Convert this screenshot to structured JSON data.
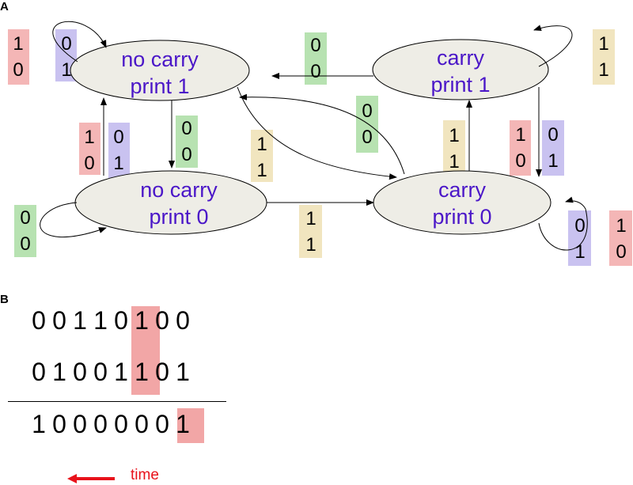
{
  "panels": {
    "a_label": "A",
    "b_label": "B"
  },
  "diagram": {
    "states": [
      {
        "id": "nc1",
        "line1": "no carry",
        "line2": "print 1"
      },
      {
        "id": "nc0",
        "line1": "no carry",
        "line2": "print 0"
      },
      {
        "id": "c1",
        "line1": "carry",
        "line2": "print 1"
      },
      {
        "id": "c0",
        "line1": "carry",
        "line2": "print 0"
      }
    ],
    "labels": [
      {
        "top": "1",
        "bottom": "0"
      },
      {
        "top": "0",
        "bottom": "1"
      },
      {
        "top": "0",
        "bottom": "0"
      },
      {
        "top": "1",
        "bottom": "1"
      },
      {
        "top": "0",
        "bottom": "0"
      },
      {
        "top": "1",
        "bottom": "0"
      },
      {
        "top": "0",
        "bottom": "1"
      },
      {
        "top": "0",
        "bottom": "0"
      },
      {
        "top": "1",
        "bottom": "1"
      },
      {
        "top": "1",
        "bottom": "1"
      },
      {
        "top": "1",
        "bottom": "0"
      },
      {
        "top": "0",
        "bottom": "1"
      },
      {
        "top": "0",
        "bottom": "0"
      },
      {
        "top": "1",
        "bottom": "1"
      },
      {
        "top": "0",
        "bottom": "1"
      },
      {
        "top": "1",
        "bottom": "0"
      }
    ],
    "colors": {
      "red": "#f4b6b6",
      "blue": "#c9c2f0",
      "green": "#b7e2b1",
      "yellow": "#f1e5bf",
      "state_fill": "#eeede6",
      "state_text": "#4b17c8"
    }
  },
  "addition": {
    "row1": [
      "0",
      "0",
      "1",
      "1",
      "0",
      "1",
      "0",
      "0"
    ],
    "row2": [
      "0",
      "1",
      "0",
      "0",
      "1",
      "1",
      "0",
      "1"
    ],
    "result": [
      "1",
      "0",
      "0",
      "0",
      "0",
      "0",
      "0",
      "1"
    ],
    "highlight_color": "#f2a6a6",
    "time_label": "time",
    "time_color": "#e8121b"
  }
}
